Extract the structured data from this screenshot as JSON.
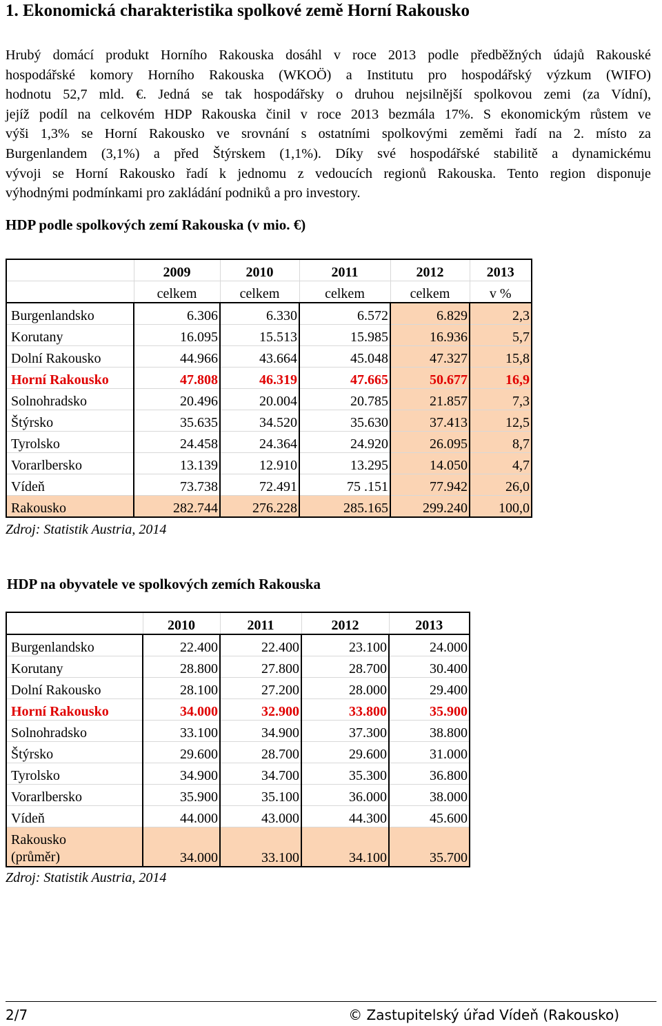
{
  "heading": "1. Ekonomická charakteristika spolkové země Horní Rakousko",
  "paragraph_lines": [
    "Hrubý domácí produkt Horního Rakouska dosáhl v roce 2013 podle předběžných údajů Rakouské",
    "hospodářské komory Horního Rakouska (WKOÖ) a Institutu pro hospodářský výzkum (WIFO)",
    "hodnotu 52,7 mld. €. Jedná se tak hospodářsky o druhou nejsilnější spolkovou zemi (za Vídní),",
    "jejíž podíl na celkovém HDP Rakouska činil v roce 2013 bezmála 17%. S ekonomickým růstem ve",
    "výši 1,3% se Horní Rakousko ve srovnání s ostatními spolkovými zeměmi řadí na 2. místo za",
    "Burgenlandem (3,1%) a před Štýrskem (1,1%). Díky své hospodářské stabilitě a dynamickému",
    "vývoji se Horní Rakousko řadí k jednomu z vedoucích regionů Rakouska. Tento region disponuje",
    "výhodnými podmínkami pro zakládání podniků a pro investory."
  ],
  "table1": {
    "title": "HDP podle spolkových zemí Rakouska (v mio. €)",
    "years": [
      "2009",
      "2010",
      "2011",
      "2012",
      "2013"
    ],
    "subheaders": [
      "celkem",
      "celkem",
      "celkem",
      "celkem",
      "v %"
    ],
    "rows": [
      {
        "label": "Burgenlandsko",
        "values": [
          "6.306",
          "6.330",
          "6.572",
          "6.829",
          "2,3"
        ]
      },
      {
        "label": "Korutany",
        "values": [
          "16.095",
          "15.513",
          "15.985",
          "16.936",
          "5,7"
        ]
      },
      {
        "label": "Dolní Rakousko",
        "values": [
          "44.966",
          "43.664",
          "45.048",
          "47.327",
          "15,8"
        ]
      },
      {
        "label": "Horní Rakousko",
        "values": [
          "47.808",
          "46.319",
          "47.665",
          "50.677",
          "16,9"
        ]
      },
      {
        "label": "Solnohradsko",
        "values": [
          "20.496",
          "20.004",
          "20.785",
          "21.857",
          "7,3"
        ]
      },
      {
        "label": "Štýrsko",
        "values": [
          "35.635",
          "34.520",
          "35.630",
          "37.413",
          "12,5"
        ]
      },
      {
        "label": "Tyrolsko",
        "values": [
          "24.458",
          "24.364",
          "24.920",
          "26.095",
          "8,7"
        ]
      },
      {
        "label": "Vorarlbersko",
        "values": [
          "13.139",
          "12.910",
          "13.295",
          "14.050",
          "4,7"
        ]
      },
      {
        "label": "Vídeň",
        "values": [
          "73.738",
          "72.491",
          "75 .151",
          "77.942",
          "26,0"
        ]
      },
      {
        "label": "Rakousko",
        "values": [
          "282.744",
          "276.228",
          "285.165",
          "299.240",
          "100,0"
        ]
      }
    ],
    "source": "Zdroj: Statistik Austria, 2014"
  },
  "table2": {
    "title": "HDP na obyvatele ve spolkových zemích Rakouska",
    "years": [
      "2010",
      "2011",
      "2012",
      "2013"
    ],
    "rows": [
      {
        "label": "Burgenlandsko",
        "values": [
          "22.400",
          "22.400",
          "23.100",
          "24.000"
        ]
      },
      {
        "label": "Korutany",
        "values": [
          "28.800",
          "27.800",
          "28.700",
          "30.400"
        ]
      },
      {
        "label": "Dolní Rakousko",
        "values": [
          "28.100",
          "27.200",
          "28.000",
          "29.400"
        ]
      },
      {
        "label": "Horní Rakousko",
        "values": [
          "34.000",
          "32.900",
          "33.800",
          "35.900"
        ]
      },
      {
        "label": "Solnohradsko",
        "values": [
          "33.100",
          "34.900",
          "37.300",
          "38.800"
        ]
      },
      {
        "label": "Štýrsko",
        "values": [
          "29.600",
          "28.700",
          "29.600",
          "31.000"
        ]
      },
      {
        "label": "Tyrolsko",
        "values": [
          "34.900",
          "34.700",
          "35.300",
          "36.800"
        ]
      },
      {
        "label": "Vorarlbersko",
        "values": [
          "35.900",
          "35.100",
          "36.000",
          "38.000"
        ]
      },
      {
        "label": "Vídeň",
        "values": [
          "44.000",
          "43.000",
          "44.300",
          "45.600"
        ]
      },
      {
        "label_line1": "Rakousko",
        "label_line2": "(průměr)",
        "values": [
          "34.000",
          "33.100",
          "34.100",
          "35.700"
        ]
      }
    ],
    "source": "Zdroj: Statistik Austria, 2014"
  },
  "footer": {
    "page": "2/7",
    "copyright": "© Zastupitelský úřad Vídeň (Rakousko)"
  }
}
